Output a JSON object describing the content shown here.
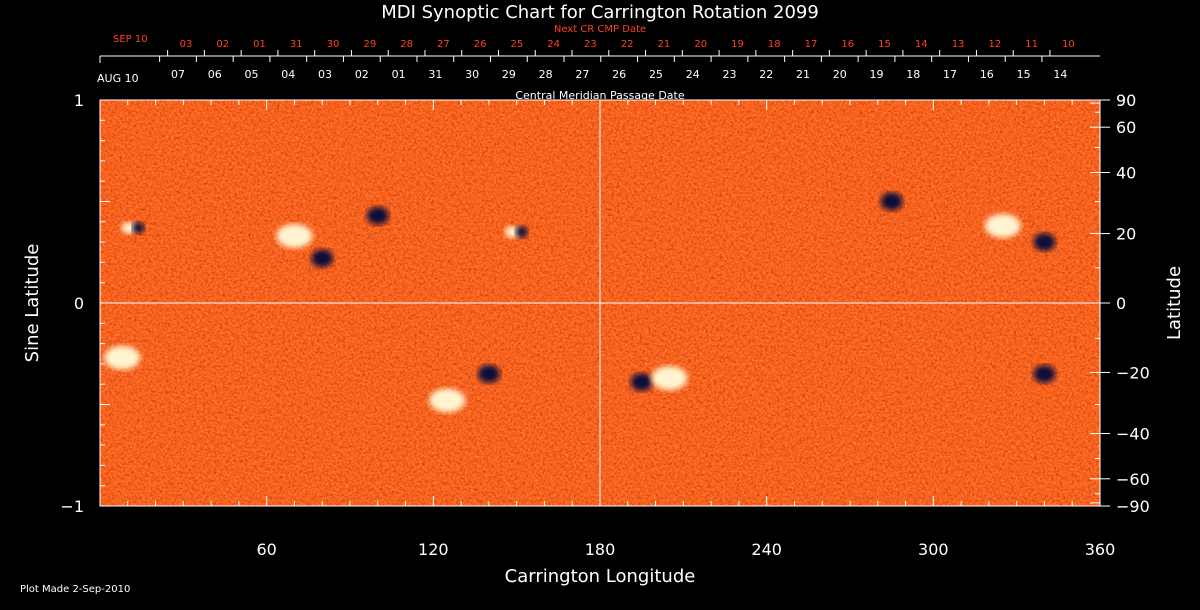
{
  "chart_data": {
    "type": "heatmap",
    "title": "MDI Synoptic Chart for Carrington Rotation 2099",
    "xlabel": "Carrington Longitude",
    "ylabel_left": "Sine Latitude",
    "ylabel_right": "Latitude",
    "xlim": [
      0,
      360
    ],
    "ylim": [
      -1,
      1
    ],
    "x_ticks": [
      60,
      120,
      180,
      240,
      300,
      360
    ],
    "y_ticks_left": [
      1,
      0,
      -1
    ],
    "y_ticks_right_deg": [
      90,
      60,
      40,
      20,
      0,
      -20,
      -40,
      -60,
      -90
    ],
    "top_axis_label": "Central Meridian Passage Date",
    "top_axis_start": "AUG 10",
    "top_axis_dates": [
      "07",
      "06",
      "05",
      "04",
      "03",
      "02",
      "01",
      "31",
      "30",
      "29",
      "28",
      "27",
      "26",
      "25",
      "24",
      "23",
      "22",
      "21",
      "20",
      "19",
      "18",
      "17",
      "16",
      "15",
      "14"
    ],
    "next_cr_label": "Next CR CMP Date",
    "next_cr_start": "SEP 10",
    "next_cr_dates": [
      "03",
      "02",
      "01",
      "31",
      "30",
      "29",
      "28",
      "27",
      "26",
      "25",
      "24",
      "23",
      "22",
      "21",
      "20",
      "19",
      "18",
      "17",
      "16",
      "15",
      "14",
      "13",
      "12",
      "11",
      "10"
    ],
    "footer": "Plot Made  2-Sep-2010",
    "colors": {
      "background_field": "#ff5a10",
      "positive": "#ffffff",
      "negative": "#0a0a3a",
      "next_cr_text": "#ff4020",
      "axis": "#ffffff"
    },
    "features": [
      {
        "lon": 12,
        "sinlat": 0.37,
        "polarity": "mixed"
      },
      {
        "lon": 70,
        "sinlat": 0.33,
        "polarity": "positive"
      },
      {
        "lon": 80,
        "sinlat": 0.22,
        "polarity": "negative"
      },
      {
        "lon": 100,
        "sinlat": 0.43,
        "polarity": "negative"
      },
      {
        "lon": 150,
        "sinlat": 0.35,
        "polarity": "mixed"
      },
      {
        "lon": 285,
        "sinlat": 0.5,
        "polarity": "negative"
      },
      {
        "lon": 325,
        "sinlat": 0.38,
        "polarity": "positive"
      },
      {
        "lon": 340,
        "sinlat": 0.3,
        "polarity": "negative"
      },
      {
        "lon": 8,
        "sinlat": -0.27,
        "polarity": "positive"
      },
      {
        "lon": 140,
        "sinlat": -0.35,
        "polarity": "negative"
      },
      {
        "lon": 125,
        "sinlat": -0.48,
        "polarity": "positive"
      },
      {
        "lon": 195,
        "sinlat": -0.39,
        "polarity": "negative"
      },
      {
        "lon": 205,
        "sinlat": -0.37,
        "polarity": "positive"
      },
      {
        "lon": 340,
        "sinlat": -0.35,
        "polarity": "negative"
      }
    ]
  }
}
